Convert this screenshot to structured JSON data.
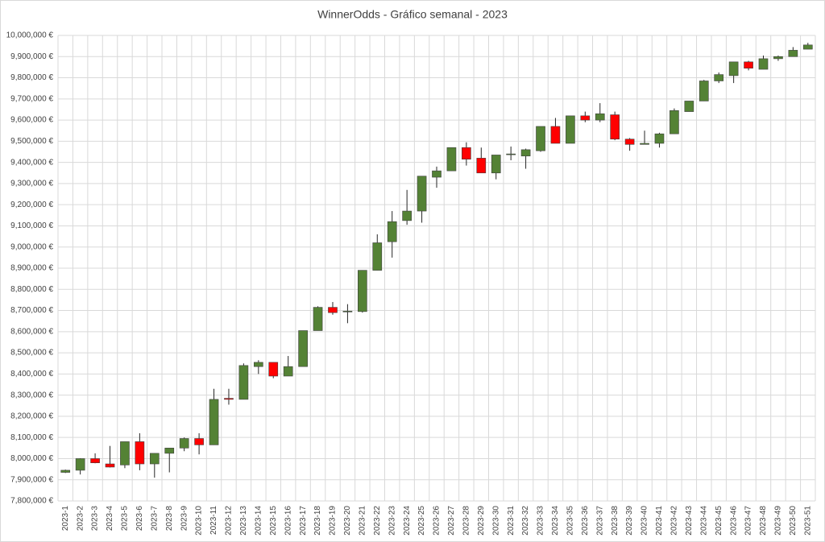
{
  "chart_data": {
    "type": "candlestick",
    "title": "WinnerOdds - Gráfico semanal - 2023",
    "categories": [
      "2023-1",
      "2023-2",
      "2023-3",
      "2023-4",
      "2023-5",
      "2023-6",
      "2023-7",
      "2023-8",
      "2023-9",
      "2023-10",
      "2023-11",
      "2023-12",
      "2023-13",
      "2023-14",
      "2023-15",
      "2023-16",
      "2023-17",
      "2023-18",
      "2023-19",
      "2023-20",
      "2023-21",
      "2023-22",
      "2023-23",
      "2023-24",
      "2023-25",
      "2023-26",
      "2023-27",
      "2023-28",
      "2023-29",
      "2023-30",
      "2023-31",
      "2023-32",
      "2023-33",
      "2023-34",
      "2023-35",
      "2023-36",
      "2023-37",
      "2023-38",
      "2023-39",
      "2023-40",
      "2023-41",
      "2023-42",
      "2023-43",
      "2023-44",
      "2023-45",
      "2023-46",
      "2023-47",
      "2023-48",
      "2023-49",
      "2023-50",
      "2023-51"
    ],
    "open": [
      7935000,
      7945000,
      8000000,
      7975000,
      7970000,
      8080000,
      7975000,
      8025000,
      8050000,
      8095000,
      8065000,
      8285000,
      8280000,
      8435000,
      8455000,
      8390000,
      8435000,
      8605000,
      8715000,
      8695000,
      8695000,
      8890000,
      9025000,
      9125000,
      9170000,
      9330000,
      9360000,
      9470000,
      9420000,
      9350000,
      9438000,
      9430000,
      9455000,
      9570000,
      9490000,
      9620000,
      9600000,
      9625000,
      9510000,
      9485000,
      9490000,
      9535000,
      9640000,
      9690000,
      9785000,
      9810000,
      9875000,
      9840000,
      9890000,
      9900000,
      9935000
    ],
    "high": [
      7948000,
      8002000,
      8025000,
      8060000,
      8080000,
      8120000,
      8025000,
      8050000,
      8100000,
      8120000,
      8330000,
      8330000,
      8450000,
      8465000,
      8455000,
      8485000,
      8605000,
      8720000,
      8740000,
      8730000,
      8890000,
      9060000,
      9170000,
      9270000,
      9335000,
      9380000,
      9470000,
      9495000,
      9470000,
      9435000,
      9475000,
      9465000,
      9570000,
      9610000,
      9620000,
      9640000,
      9680000,
      9640000,
      9515000,
      9550000,
      9540000,
      9655000,
      9690000,
      9790000,
      9825000,
      9875000,
      9880000,
      9905000,
      9905000,
      9945000,
      9965000
    ],
    "low": [
      7932000,
      7925000,
      7978000,
      7958000,
      7955000,
      7945000,
      7910000,
      7935000,
      8035000,
      8020000,
      8065000,
      8255000,
      8280000,
      8400000,
      8380000,
      8390000,
      8435000,
      8605000,
      8680000,
      8640000,
      8690000,
      8890000,
      8950000,
      9105000,
      9115000,
      9280000,
      9360000,
      9385000,
      9350000,
      9320000,
      9410000,
      9370000,
      9450000,
      9490000,
      9490000,
      9590000,
      9590000,
      9505000,
      9455000,
      9485000,
      9470000,
      9535000,
      9640000,
      9690000,
      9775000,
      9775000,
      9835000,
      9840000,
      9880000,
      9900000,
      9935000
    ],
    "close": [
      7945000,
      8000000,
      7980000,
      7960000,
      8080000,
      7975000,
      8025000,
      8050000,
      8095000,
      8065000,
      8280000,
      8280000,
      8440000,
      8455000,
      8390000,
      8435000,
      8605000,
      8715000,
      8690000,
      8697000,
      8890000,
      9020000,
      9120000,
      9170000,
      9335000,
      9360000,
      9470000,
      9415000,
      9350000,
      9435000,
      9440000,
      9460000,
      9570000,
      9490000,
      9620000,
      9600000,
      9630000,
      9510000,
      9485000,
      9490000,
      9535000,
      9645000,
      9690000,
      9785000,
      9815000,
      9875000,
      9845000,
      9890000,
      9900000,
      9930000,
      9955000
    ],
    "up_color": "#548235",
    "down_color": "#ff0000",
    "ylim": [
      7800000,
      10000000
    ],
    "yticks": [
      {
        "value": 7800000,
        "label": "7,800,000 €"
      },
      {
        "value": 7900000,
        "label": "7,900,000 €"
      },
      {
        "value": 8000000,
        "label": "8,000,000 €"
      },
      {
        "value": 8100000,
        "label": "8,100,000 €"
      },
      {
        "value": 8200000,
        "label": "8,200,000 €"
      },
      {
        "value": 8300000,
        "label": "8,300,000 €"
      },
      {
        "value": 8400000,
        "label": "8,400,000 €"
      },
      {
        "value": 8500000,
        "label": "8,500,000 €"
      },
      {
        "value": 8600000,
        "label": "8,600,000 €"
      },
      {
        "value": 8700000,
        "label": "8,700,000 €"
      },
      {
        "value": 8800000,
        "label": "8,800,000 €"
      },
      {
        "value": 8900000,
        "label": "8,900,000 €"
      },
      {
        "value": 9000000,
        "label": "9,000,000 €"
      },
      {
        "value": 9100000,
        "label": "9,100,000 €"
      },
      {
        "value": 9200000,
        "label": "9,200,000 €"
      },
      {
        "value": 9300000,
        "label": "9,300,000 €"
      },
      {
        "value": 9400000,
        "label": "9,400,000 €"
      },
      {
        "value": 9500000,
        "label": "9,500,000 €"
      },
      {
        "value": 9600000,
        "label": "9,600,000 €"
      },
      {
        "value": 9700000,
        "label": "9,700,000 €"
      },
      {
        "value": 9800000,
        "label": "9,800,000 €"
      },
      {
        "value": 9900000,
        "label": "9,900,000 €"
      },
      {
        "value": 10000000,
        "label": "10,000,000 €"
      }
    ],
    "grid": true
  }
}
